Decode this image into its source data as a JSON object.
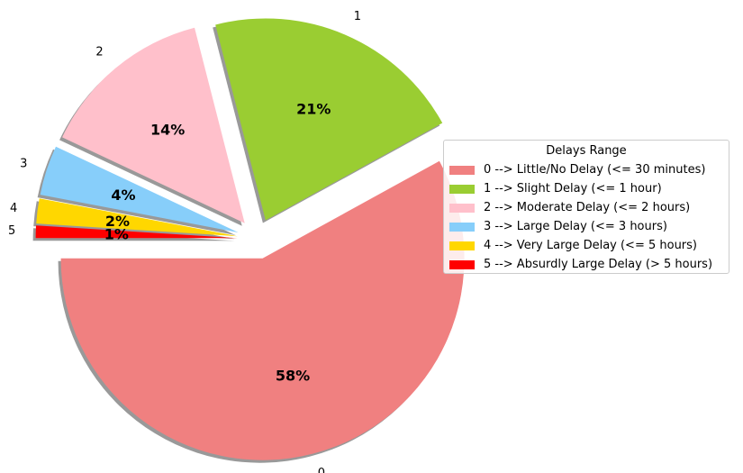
{
  "chart_data": {
    "type": "pie",
    "categories": [
      "0",
      "1",
      "2",
      "3",
      "4",
      "5"
    ],
    "values": [
      58,
      21,
      14,
      4,
      2,
      1
    ],
    "percent_labels": [
      "58%",
      "21%",
      "14%",
      "4%",
      "2%",
      "1%"
    ],
    "colors": [
      "#f08080",
      "#9acd32",
      "#ffc0cb",
      "#87cefa",
      "#ffd700",
      "#ff0000"
    ],
    "exploded": true,
    "shadow": true,
    "start_angle_deg": 180,
    "legend": {
      "title": "Delays Range",
      "placement": "right",
      "entries": [
        "0 --> Little/No Delay (<= 30 minutes)",
        "1 --> Slight Delay (<= 1 hour)",
        "2 --> Moderate Delay (<= 2 hours)",
        "3 --> Large Delay (<= 3 hours)",
        "4 --> Very Large Delay (<= 5 hours)",
        "5 --> Absurdly Large Delay (> 5 hours)"
      ]
    }
  }
}
